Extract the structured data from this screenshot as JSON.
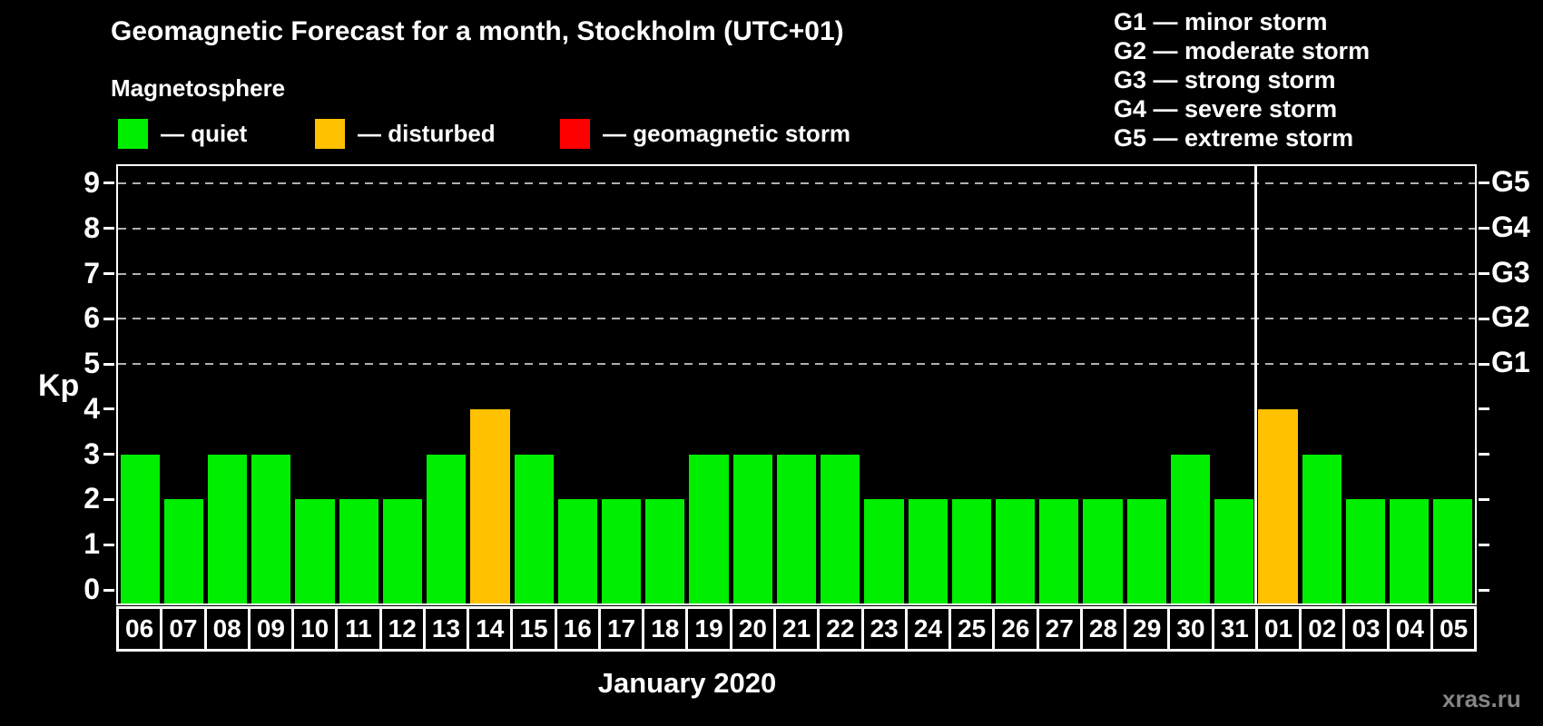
{
  "subtitle": "Magnetosphere",
  "legend": {
    "items": [
      {
        "name": "quiet",
        "label": "— quiet",
        "color": "#00ee00"
      },
      {
        "name": "disturbed",
        "label": "— disturbed",
        "color": "#ffc100"
      },
      {
        "name": "storm",
        "label": "— geomagnetic storm",
        "color": "#ff0000"
      }
    ]
  },
  "g_scale_legend": [
    "G1 — minor storm",
    "G2 — moderate storm",
    "G3 — strong storm",
    "G4 — severe storm",
    "G5 — extreme storm"
  ],
  "watermark": "xras.ru",
  "chart_data": {
    "type": "bar",
    "title": "Geomagnetic Forecast for a month, Stockholm (UTC+01)",
    "xlabel": "January 2020",
    "ylabel": "Kp",
    "ylim": [
      0,
      9.4
    ],
    "yticks": [
      0,
      1,
      2,
      3,
      4,
      5,
      6,
      7,
      8,
      9
    ],
    "gridlines_at": [
      5,
      6,
      7,
      8,
      9
    ],
    "grid": "dashed, only at storm levels G1-G5",
    "legend_position": "top-left",
    "right_axis_labels": [
      {
        "kp": 5,
        "label": "G1"
      },
      {
        "kp": 6,
        "label": "G2"
      },
      {
        "kp": 7,
        "label": "G3"
      },
      {
        "kp": 8,
        "label": "G4"
      },
      {
        "kp": 9,
        "label": "G5"
      }
    ],
    "categories": [
      "06",
      "07",
      "08",
      "09",
      "10",
      "11",
      "12",
      "13",
      "14",
      "15",
      "16",
      "17",
      "18",
      "19",
      "20",
      "21",
      "22",
      "23",
      "24",
      "25",
      "26",
      "27",
      "28",
      "29",
      "30",
      "31",
      "01",
      "02",
      "03",
      "04",
      "05"
    ],
    "values": [
      3,
      2,
      3,
      3,
      2,
      2,
      2,
      3,
      4,
      3,
      2,
      2,
      2,
      3,
      3,
      3,
      3,
      2,
      2,
      2,
      2,
      2,
      2,
      2,
      3,
      2,
      4,
      3,
      2,
      2,
      2
    ],
    "statuses": [
      "quiet",
      "quiet",
      "quiet",
      "quiet",
      "quiet",
      "quiet",
      "quiet",
      "quiet",
      "disturbed",
      "quiet",
      "quiet",
      "quiet",
      "quiet",
      "quiet",
      "quiet",
      "quiet",
      "quiet",
      "quiet",
      "quiet",
      "quiet",
      "quiet",
      "quiet",
      "quiet",
      "quiet",
      "quiet",
      "quiet",
      "disturbed",
      "quiet",
      "quiet",
      "quiet",
      "quiet"
    ],
    "status_colors": {
      "quiet": "#00ee00",
      "disturbed": "#ffc100",
      "storm": "#ff0000"
    },
    "month_boundary_after_index": 25
  }
}
